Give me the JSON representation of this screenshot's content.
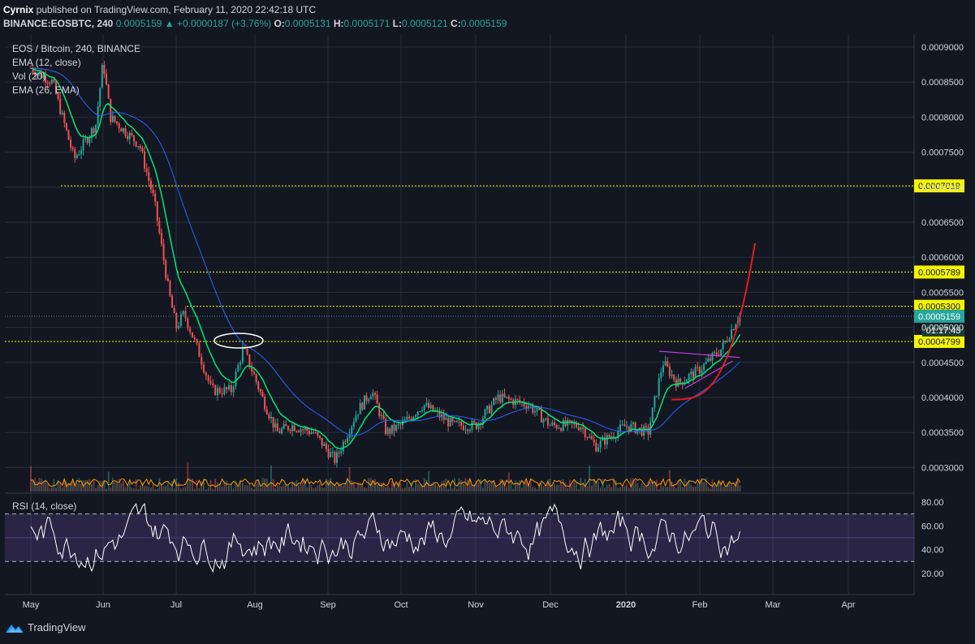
{
  "header": {
    "publisher": "Cyrnix",
    "published_text": "published on TradingView.com, February 11, 2020 22:42:18 UTC",
    "symbol": "BINANCE:EOSBTC, 240",
    "last": "0.0005159",
    "change": "+0.0000187 (+3.76%)",
    "o_label": "O:",
    "o": "0.0005131",
    "h_label": "H:",
    "h": "0.0005171",
    "l_label": "L:",
    "l": "0.0005121",
    "c_label": "C:",
    "c": "0.0005159"
  },
  "legend": {
    "title": "EOS / Bitcoin, 240, BINANCE",
    "ema": "EMA (12, close)",
    "vol": "Vol (20)",
    "ema2": "EMA (26, EMA)",
    "rsi": "RSI (14, close)"
  },
  "footer": {
    "brand": "TradingView"
  },
  "colors": {
    "bg": "#131722",
    "up": "#26a69a",
    "down": "#ef5350",
    "level": "#f5f500",
    "rsi_band": "#7e57c2",
    "curve": "#e01e1e",
    "triangle": "#e040fb"
  },
  "chart_data": {
    "type": "line",
    "price_axis": {
      "min": 0.00026,
      "max": 0.00092,
      "ticks": [
        "0.0009000",
        "0.0008500",
        "0.0008000",
        "0.0007500",
        "0.0007000",
        "0.0006500",
        "0.0006000",
        "0.0005500",
        "0.0005000",
        "0.0004500",
        "0.0004000",
        "0.0003500",
        "0.0003000"
      ]
    },
    "time_labels": [
      "May",
      "Jun",
      "Jul",
      "Aug",
      "Sep",
      "Oct",
      "Nov",
      "Dec",
      "2020",
      "Feb",
      "Mar",
      "Apr"
    ],
    "price_path": [
      {
        "t": 0.0,
        "p": 0.00087
      },
      {
        "t": 0.3,
        "p": 0.00085
      },
      {
        "t": 0.6,
        "p": 0.00074
      },
      {
        "t": 0.9,
        "p": 0.00079
      },
      {
        "t": 1.0,
        "p": 0.00088
      },
      {
        "t": 1.1,
        "p": 0.0008
      },
      {
        "t": 1.5,
        "p": 0.00076
      },
      {
        "t": 1.7,
        "p": 0.00068
      },
      {
        "t": 1.9,
        "p": 0.00055
      },
      {
        "t": 2.0,
        "p": 0.0005
      },
      {
        "t": 2.1,
        "p": 0.00052
      },
      {
        "t": 2.3,
        "p": 0.00046
      },
      {
        "t": 2.45,
        "p": 0.00041
      },
      {
        "t": 2.7,
        "p": 0.00041
      },
      {
        "t": 2.85,
        "p": 0.00047
      },
      {
        "t": 3.1,
        "p": 0.0004
      },
      {
        "t": 3.3,
        "p": 0.00035
      },
      {
        "t": 3.5,
        "p": 0.00036
      },
      {
        "t": 3.8,
        "p": 0.00035
      },
      {
        "t": 4.1,
        "p": 0.00031
      },
      {
        "t": 4.4,
        "p": 0.00038
      },
      {
        "t": 4.6,
        "p": 0.00041
      },
      {
        "t": 4.8,
        "p": 0.00035
      },
      {
        "t": 5.0,
        "p": 0.00036
      },
      {
        "t": 5.3,
        "p": 0.00039
      },
      {
        "t": 5.7,
        "p": 0.00036
      },
      {
        "t": 6.0,
        "p": 0.00036
      },
      {
        "t": 6.3,
        "p": 0.0004
      },
      {
        "t": 6.7,
        "p": 0.00039
      },
      {
        "t": 7.0,
        "p": 0.00036
      },
      {
        "t": 7.4,
        "p": 0.00036
      },
      {
        "t": 7.6,
        "p": 0.00033
      },
      {
        "t": 8.0,
        "p": 0.00036
      },
      {
        "t": 8.3,
        "p": 0.00035
      },
      {
        "t": 8.5,
        "p": 0.00045
      },
      {
        "t": 8.7,
        "p": 0.00042
      },
      {
        "t": 9.0,
        "p": 0.00044
      },
      {
        "t": 9.3,
        "p": 0.00047
      },
      {
        "t": 9.45,
        "p": 0.0005
      },
      {
        "t": 9.55,
        "p": 0.00052
      }
    ],
    "levels": [
      "0.0007019",
      "0.0005789",
      "0.0005300",
      "0.0004799"
    ],
    "level_values": [
      0.0007019,
      0.0005789,
      0.00053,
      0.0004799
    ],
    "last_price": "0.0005159",
    "countdown": "01:17:43",
    "rsi_axis": {
      "min": 10,
      "max": 85,
      "ticks": [
        "80.00",
        "60.00",
        "40.00",
        "20.00"
      ],
      "bands": [
        70,
        30
      ]
    }
  }
}
